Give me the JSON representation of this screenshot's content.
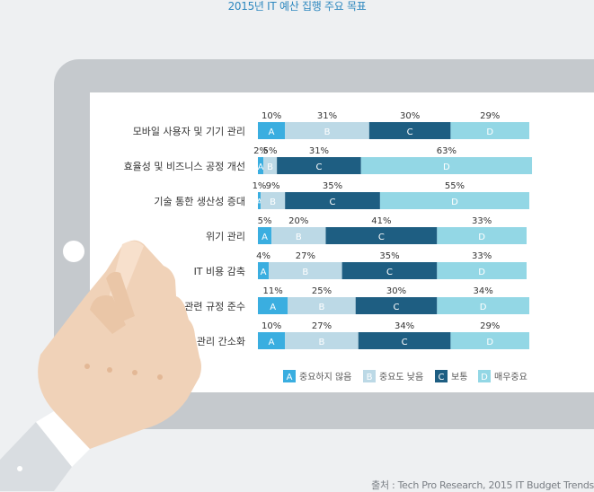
{
  "title": "2015년 IT 예산 집행 주요 목표",
  "source": "출처 : Tech Pro Research, 2015 IT Budget Trends",
  "chart_data": {
    "type": "bar",
    "stacked": true,
    "orientation": "horizontal",
    "categories": [
      "모바일 사용자 및 기기 관리",
      "효율성 및 비즈니스 공정 개선",
      "기술 통한 생산성 증대",
      "위기 관리",
      "IT 비용 감축",
      "관련 규정 준수",
      "IT 관리 간소화"
    ],
    "series": [
      {
        "name": "A",
        "label": "중요하지 않음",
        "color": "#3aaee0",
        "values": [
          10,
          2,
          1,
          5,
          4,
          11,
          10
        ]
      },
      {
        "name": "B",
        "label": "중요도 낮음",
        "color": "#bcd9e6",
        "values": [
          31,
          5,
          9,
          20,
          27,
          25,
          27
        ]
      },
      {
        "name": "C",
        "label": "보통",
        "color": "#1e5e82",
        "values": [
          30,
          31,
          35,
          41,
          35,
          30,
          34
        ]
      },
      {
        "name": "D",
        "label": "매우중요",
        "color": "#93d7e5",
        "values": [
          29,
          63,
          55,
          33,
          33,
          34,
          29
        ]
      }
    ],
    "unit": "%",
    "xlim": [
      0,
      100
    ],
    "legend": "bottom-right"
  }
}
